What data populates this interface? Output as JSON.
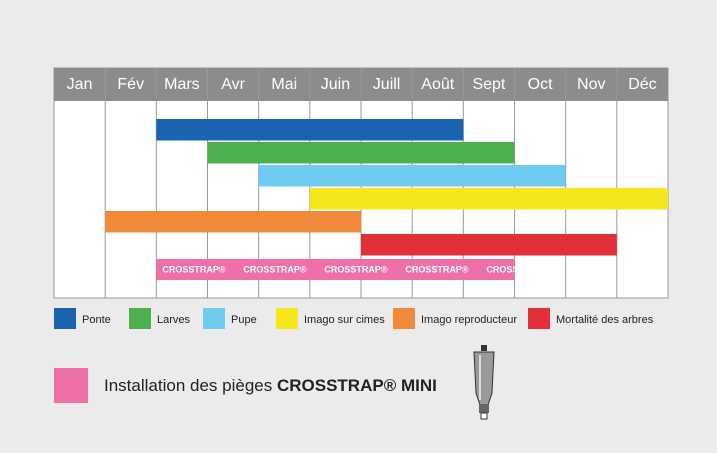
{
  "chart_data": {
    "type": "gantt",
    "categories": [
      "Jan",
      "Fév",
      "Mars",
      "Avr",
      "Mai",
      "Juin",
      "Juill",
      "Août",
      "Sept",
      "Oct",
      "Nov",
      "Déc"
    ],
    "series": [
      {
        "name": "Ponte",
        "color": "#1a63b0",
        "start": "Mars",
        "end": "Août"
      },
      {
        "name": "Larves",
        "color": "#4cb050",
        "start": "Avr",
        "end": "Sept"
      },
      {
        "name": "Pupe",
        "color": "#6fcbf0",
        "start": "Mai",
        "end": "Oct"
      },
      {
        "name": "Imago sur cimes",
        "color": "#f6e61c",
        "start": "Juin",
        "end": "Déc"
      },
      {
        "name": "Imago reproducteur",
        "color": "#f08a3a",
        "start": "Fév",
        "end": "Juin"
      },
      {
        "name": "Mortalité des arbres",
        "color": "#e2303b",
        "start": "Juill",
        "end": "Nov"
      }
    ],
    "trap": {
      "color": "#ef6fa9",
      "start": "Mars",
      "end": "Sept",
      "bar_label": "CROSSTRAP®",
      "legend_text": "Installation des pièges",
      "legend_product": "CROSSTRAP® MINI"
    }
  }
}
